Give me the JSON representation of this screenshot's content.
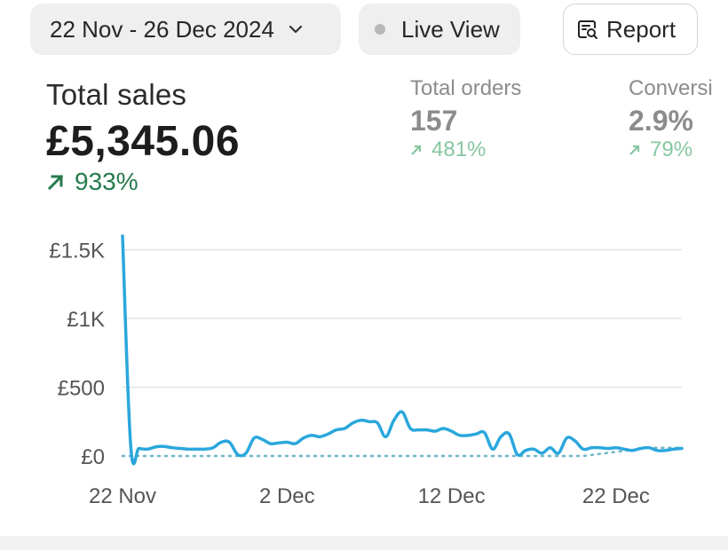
{
  "toolbar": {
    "date_range": "22 Nov - 26 Dec 2024",
    "live_view_label": "Live View",
    "report_label": "Report"
  },
  "metrics": {
    "total_sales": {
      "label": "Total sales",
      "value": "£5,345.06",
      "change": "933%",
      "change_color": "#267a4c"
    },
    "total_orders": {
      "label": "Total orders",
      "value": "157",
      "change": "481%"
    },
    "conversion": {
      "label": "Conversi",
      "value": "2.9%",
      "change": "79%"
    }
  },
  "chart_data": {
    "type": "line",
    "ylim": [
      0,
      1600
    ],
    "y_ticks": [
      {
        "value": 0,
        "label": "£0"
      },
      {
        "value": 500,
        "label": "£500"
      },
      {
        "value": 1000,
        "label": "£1K"
      },
      {
        "value": 1500,
        "label": "£1.5K"
      }
    ],
    "x_ticks": [
      {
        "day": 0,
        "label": "22 Nov"
      },
      {
        "day": 10,
        "label": "2 Dec"
      },
      {
        "day": 20,
        "label": "12 Dec"
      },
      {
        "day": 30,
        "label": "22 Dec"
      }
    ],
    "x_range_days": [
      0,
      34
    ],
    "grid": true,
    "series": [
      {
        "style": "solid",
        "color": "#2aa7dd",
        "x": [
          0,
          0.5,
          1,
          1.5,
          2,
          2.5,
          3,
          3.5,
          4,
          4.5,
          5,
          5.5,
          6,
          6.5,
          7,
          7.5,
          8,
          8.5,
          9,
          9.5,
          10,
          10.5,
          11,
          11.5,
          12,
          12.5,
          13,
          13.5,
          14,
          14.5,
          15,
          15.5,
          16,
          16.5,
          17,
          17.5,
          18,
          18.5,
          19,
          19.5,
          20,
          20.5,
          21,
          21.5,
          22,
          22.5,
          23,
          23.5,
          24,
          24.5,
          25,
          25.5,
          26,
          26.5,
          27,
          27.5,
          28,
          28.5,
          29,
          29.5,
          30,
          30.5,
          31,
          31.5,
          32,
          32.5,
          33,
          33.5,
          34
        ],
        "values": [
          1600,
          70,
          55,
          50,
          65,
          70,
          60,
          55,
          50,
          50,
          50,
          60,
          100,
          100,
          10,
          20,
          130,
          120,
          90,
          95,
          100,
          90,
          130,
          150,
          140,
          160,
          190,
          200,
          240,
          260,
          250,
          240,
          140,
          260,
          320,
          200,
          190,
          190,
          180,
          200,
          180,
          150,
          150,
          160,
          170,
          50,
          140,
          160,
          10,
          40,
          50,
          20,
          60,
          20,
          130,
          110,
          50,
          60,
          60,
          55,
          60,
          50,
          40,
          55,
          60,
          40,
          40,
          50,
          55
        ]
      },
      {
        "style": "dotted",
        "color": "#6fb6c6",
        "x": [
          0,
          28,
          30,
          32,
          34
        ],
        "values": [
          0,
          0,
          30,
          60,
          60
        ]
      }
    ]
  }
}
